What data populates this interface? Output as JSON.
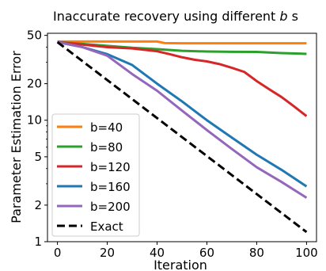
{
  "chart_data": {
    "type": "line",
    "title": "Inaccurate recovery using different b s",
    "title_parts": {
      "pre": "Inaccurate recovery using different ",
      "var": "b",
      "post": " s"
    },
    "xlabel": "Iteration",
    "ylabel": "Parameter Estimation Error",
    "xlim": [
      -4,
      104
    ],
    "ylim": [
      1,
      52
    ],
    "yscale": "log",
    "xticks": [
      0,
      20,
      40,
      60,
      80,
      100
    ],
    "xtick_labels": [
      "0",
      "20",
      "40",
      "60",
      "80",
      "100"
    ],
    "yticks": [
      1,
      2,
      5,
      10,
      20,
      50
    ],
    "ytick_labels": [
      "1",
      "2",
      "5",
      "10",
      "20",
      "50"
    ],
    "grid": false,
    "legend_position": "lower-left",
    "series": [
      {
        "name": "b=40",
        "color": "#ff7f0e",
        "dash": "solid",
        "x": [
          0,
          10,
          20,
          30,
          40,
          43,
          50,
          60,
          70,
          80,
          90,
          100
        ],
        "y": [
          44.5,
          44.5,
          44.5,
          44.5,
          44.5,
          43.2,
          43,
          43,
          43,
          43,
          43,
          43
        ]
      },
      {
        "name": "b=80",
        "color": "#2ca02c",
        "dash": "solid",
        "x": [
          0,
          10,
          20,
          30,
          40,
          50,
          60,
          70,
          80,
          90,
          100
        ],
        "y": [
          44,
          42.5,
          41,
          39.5,
          38.5,
          37.3,
          36.8,
          36.6,
          36.5,
          35.7,
          35.2
        ]
      },
      {
        "name": "b=120",
        "color": "#d62728",
        "dash": "solid",
        "x": [
          0,
          10,
          20,
          30,
          40,
          45,
          50,
          55,
          60,
          65,
          70,
          75,
          80,
          85,
          90,
          95,
          100
        ],
        "y": [
          44,
          42,
          40,
          39,
          37,
          35,
          33,
          31.5,
          30.5,
          29,
          27,
          25,
          21,
          18,
          15.5,
          13,
          10.8
        ]
      },
      {
        "name": "b=160",
        "color": "#1f77b4",
        "dash": "solid",
        "x": [
          0,
          10,
          20,
          30,
          40,
          50,
          60,
          70,
          80,
          90,
          100
        ],
        "y": [
          44,
          40,
          35,
          28.5,
          20,
          14.3,
          10,
          7.2,
          5.2,
          3.9,
          2.85
        ]
      },
      {
        "name": "b=200",
        "color": "#9467bd",
        "dash": "solid",
        "x": [
          0,
          10,
          20,
          30,
          40,
          50,
          60,
          70,
          80,
          90,
          100
        ],
        "y": [
          44,
          40,
          34,
          24,
          17.5,
          12,
          8.3,
          5.8,
          4.1,
          3.1,
          2.3
        ]
      },
      {
        "name": "Exact",
        "color": "#000000",
        "dash": "dashed",
        "x": [
          0,
          100
        ],
        "y": [
          44,
          1.2
        ]
      }
    ]
  }
}
